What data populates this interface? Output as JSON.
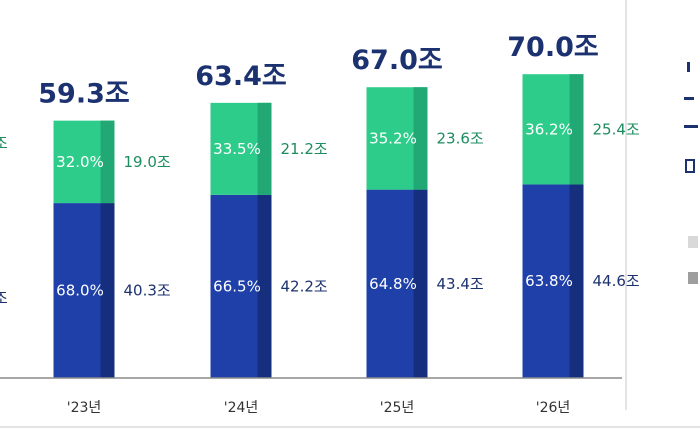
{
  "chart_data": {
    "type": "bar",
    "stacked": true,
    "categories": [
      "'23년",
      "'24년",
      "'25년",
      "'26년"
    ],
    "totals": [
      "59.3조",
      "63.4조",
      "67.0조",
      "70.0조"
    ],
    "series": [
      {
        "values": [
          40.3,
          42.2,
          43.4,
          44.6
        ],
        "value_labels": [
          "40.3조",
          "42.2조",
          "43.4조",
          "44.6조"
        ],
        "share_labels": [
          "68.0%",
          "66.5%",
          "64.8%",
          "63.8%"
        ],
        "color": "#1e40a8",
        "shade_color": "#152f7e",
        "text_color": "#1c3270"
      },
      {
        "values": [
          19.0,
          21.2,
          23.6,
          25.4
        ],
        "value_labels": [
          "19.0조",
          "21.2조",
          "23.6조",
          "25.4조"
        ],
        "share_labels": [
          "32.0%",
          "33.5%",
          "35.2%",
          "36.2%"
        ],
        "color": "#2ecc8a",
        "shade_color": "#22a874",
        "text_color": "#1e8c5e"
      }
    ],
    "legend": "right",
    "grid": false
  },
  "partial_left": {
    "labels": [
      "조",
      "조"
    ]
  },
  "partial_right": {
    "swatch_colors": [
      "#d9d9d9",
      "#9e9e9e"
    ]
  }
}
